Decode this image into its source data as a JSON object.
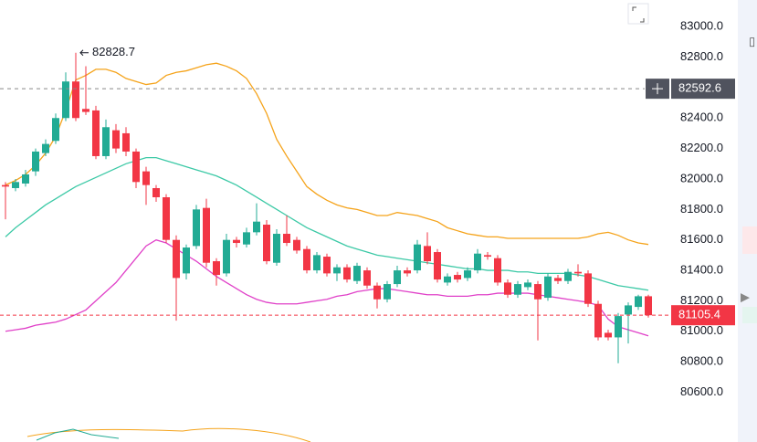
{
  "chart_data": {
    "type": "candlestick",
    "ylim": [
      80450,
      83175
    ],
    "yticks": [
      {
        "value": 83000,
        "label": "83000.0"
      },
      {
        "value": 82800,
        "label": "82800.0"
      },
      {
        "value": 82600,
        "label": "82600.0"
      },
      {
        "value": 82400,
        "label": "82400.0"
      },
      {
        "value": 82200,
        "label": "82200.0"
      },
      {
        "value": 82000,
        "label": "82000.0"
      },
      {
        "value": 81800,
        "label": "81800.0"
      },
      {
        "value": 81600,
        "label": "81600.0"
      },
      {
        "value": 81400,
        "label": "81400.0"
      },
      {
        "value": 81200,
        "label": "81200.0"
      },
      {
        "value": 81000,
        "label": "81000.0"
      },
      {
        "value": 80800,
        "label": "80800.0"
      },
      {
        "value": 80600,
        "label": "80600.0"
      }
    ],
    "grid": false,
    "up_color": "#22ab94",
    "down_color": "#f23645",
    "open": [
      81960,
      81940,
      81970,
      82050,
      82170,
      82250,
      82400,
      82640,
      82460,
      82450,
      82150,
      82320,
      82300,
      82180,
      82050,
      81940,
      81880,
      81600,
      81380,
      81560,
      81810,
      81460,
      81380,
      81600,
      81570,
      81650,
      81700,
      81450,
      81640,
      81600,
      81540,
      81400,
      81490,
      81380,
      81420,
      81330,
      81400,
      81300,
      81210,
      81310,
      81400,
      81400,
      81560,
      81520,
      81320,
      81370,
      81350,
      81400,
      81500,
      81480,
      81320,
      81240,
      81290,
      81310,
      81220,
      81350,
      81330,
      81390,
      81380,
      81180,
      80990,
      80960,
      81110,
      81160,
      81230
    ],
    "high": [
      81980,
      82000,
      82060,
      82200,
      82260,
      82430,
      82700,
      82828.7,
      82740,
      82480,
      82390,
      82360,
      82340,
      82200,
      82080,
      81960,
      81900,
      81630,
      81570,
      81830,
      81870,
      81480,
      81640,
      81620,
      81680,
      81840,
      81730,
      81670,
      81760,
      81620,
      81560,
      81520,
      81510,
      81440,
      81440,
      81450,
      81420,
      81320,
      81330,
      81430,
      81420,
      81600,
      81650,
      81540,
      81380,
      81390,
      81420,
      81540,
      81520,
      81500,
      81340,
      81330,
      81340,
      81330,
      81380,
      81370,
      81410,
      81440,
      81400,
      81200,
      81010,
      81120,
      81190,
      81240,
      81240
    ],
    "low": [
      81735,
      81920,
      81950,
      82020,
      82150,
      82230,
      82380,
      82380,
      82420,
      82130,
      82130,
      82170,
      82150,
      81940,
      81830,
      81850,
      81580,
      81070,
      81340,
      81540,
      81420,
      81300,
      81360,
      81550,
      81550,
      81630,
      81440,
      81430,
      81560,
      81510,
      81380,
      81380,
      81360,
      81330,
      81320,
      81310,
      81280,
      81150,
      81190,
      81290,
      81360,
      81380,
      81440,
      81320,
      81300,
      81320,
      81330,
      81380,
      81470,
      81300,
      81220,
      81220,
      81270,
      80940,
      81200,
      81310,
      81310,
      81360,
      81160,
      80940,
      80940,
      80790,
      80920,
      81140,
      81090
    ],
    "close": [
      81950,
      81980,
      82030,
      82180,
      82230,
      82400,
      82640,
      82400,
      82440,
      82150,
      82340,
      82200,
      82180,
      81980,
      81960,
      81880,
      81600,
      81350,
      81550,
      81800,
      81450,
      81370,
      81600,
      81580,
      81650,
      81720,
      81460,
      81640,
      81580,
      81530,
      81400,
      81500,
      81380,
      81420,
      81340,
      81430,
      81300,
      81210,
      81310,
      81400,
      81380,
      81570,
      81460,
      81340,
      81360,
      81340,
      81400,
      81510,
      81490,
      81320,
      81240,
      81310,
      81320,
      81210,
      81360,
      81330,
      81390,
      81380,
      81180,
      80960,
      80960,
      81100,
      81170,
      81230,
      81105.4
    ],
    "series": [
      {
        "color": "#f5a31a",
        "values": [
          81960,
          81990,
          82030,
          82090,
          82170,
          82280,
          82450,
          82650,
          82680,
          82720,
          82720,
          82700,
          82660,
          82640,
          82620,
          82630,
          82680,
          82700,
          82710,
          82730,
          82750,
          82760,
          82740,
          82710,
          82660,
          82560,
          82430,
          82260,
          82150,
          82050,
          81950,
          81900,
          81860,
          81830,
          81810,
          81800,
          81780,
          81760,
          81760,
          81780,
          81770,
          81760,
          81740,
          81720,
          81680,
          81660,
          81640,
          81630,
          81620,
          81620,
          81610,
          81610,
          81610,
          81610,
          81610,
          81610,
          81610,
          81610,
          81620,
          81640,
          81650,
          81630,
          81600,
          81580,
          81570
        ]
      },
      {
        "color": "#3cc9a6",
        "values": [
          81620,
          81680,
          81730,
          81780,
          81830,
          81870,
          81910,
          81950,
          81980,
          82010,
          82040,
          82070,
          82100,
          82120,
          82140,
          82140,
          82120,
          82100,
          82080,
          82060,
          82040,
          82020,
          81990,
          81960,
          81920,
          81880,
          81840,
          81800,
          81760,
          81720,
          81680,
          81650,
          81620,
          81590,
          81560,
          81540,
          81520,
          81500,
          81490,
          81480,
          81470,
          81460,
          81450,
          81440,
          81430,
          81420,
          81410,
          81410,
          81400,
          81400,
          81400,
          81390,
          81390,
          81380,
          81380,
          81380,
          81380,
          81370,
          81360,
          81340,
          81320,
          81300,
          81290,
          81280,
          81270
        ]
      },
      {
        "color": "#e040c8",
        "values": [
          81000,
          81010,
          81020,
          81040,
          81050,
          81060,
          81080,
          81110,
          81140,
          81200,
          81260,
          81320,
          81400,
          81480,
          81560,
          81600,
          81580,
          81540,
          81500,
          81460,
          81410,
          81360,
          81320,
          81280,
          81240,
          81210,
          81190,
          81180,
          81180,
          81180,
          81190,
          81200,
          81210,
          81230,
          81240,
          81260,
          81270,
          81280,
          81280,
          81270,
          81260,
          81250,
          81240,
          81240,
          81230,
          81230,
          81230,
          81240,
          81240,
          81250,
          81250,
          81250,
          81250,
          81240,
          81230,
          81220,
          81210,
          81200,
          81190,
          81170,
          81080,
          81030,
          81010,
          80990,
          80970
        ]
      }
    ],
    "crosshair_price": 82592.6
  }
}
